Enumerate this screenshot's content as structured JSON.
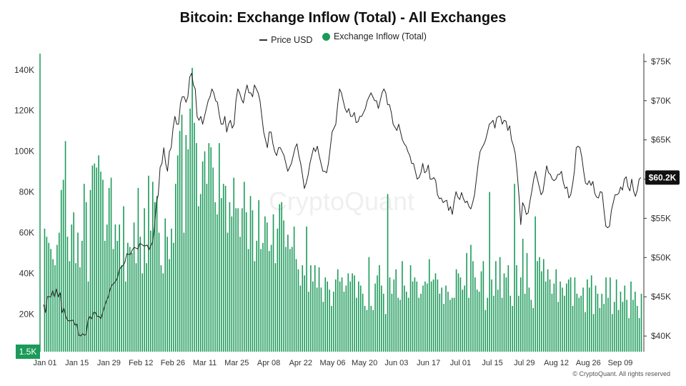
{
  "chart_data": {
    "type": "bar",
    "title": "Bitcoin: Exchange Inflow (Total) - All Exchanges",
    "legend": [
      "Price USD",
      "Exchange Inflow (Total)"
    ],
    "colors": {
      "bar": "#1c9a5a",
      "price": "#222222",
      "bar_light": "#cfe9da"
    },
    "left_axis": {
      "ticks": [
        "20K",
        "40K",
        "60K",
        "80K",
        "100K",
        "120K",
        "140K"
      ],
      "ylim": [
        1500,
        148000
      ],
      "highlight_label": "1.5K"
    },
    "right_axis": {
      "ticks": [
        "$40K",
        "$45K",
        "$50K",
        "$55K",
        "$60K",
        "$65K",
        "$70K",
        "$75K"
      ],
      "ylim": [
        38000,
        76000
      ],
      "highlight_label": "$60.2K"
    },
    "x_labels": [
      "Jan 01",
      "Jan 15",
      "Jan 29",
      "Feb 12",
      "Feb 26",
      "Mar 11",
      "Mar 25",
      "Apr 08",
      "Apr 22",
      "May 06",
      "May 20",
      "Jun 03",
      "Jun 17",
      "Jul 01",
      "Jul 15",
      "Jul 29",
      "Aug 12",
      "Aug 26",
      "Sep 09"
    ],
    "inflow": [
      62000,
      58000,
      55000,
      52000,
      47000,
      44000,
      54000,
      60000,
      81000,
      86000,
      105000,
      58000,
      46000,
      64000,
      70000,
      45000,
      60000,
      43000,
      56000,
      84000,
      75000,
      36000,
      81000,
      93000,
      94000,
      92000,
      98000,
      90000,
      86000,
      56000,
      64000,
      82000,
      87000,
      52000,
      64000,
      56000,
      64000,
      44000,
      73000,
      36000,
      55000,
      53000,
      50000,
      65000,
      45000,
      82000,
      58000,
      40000,
      72000,
      45000,
      88000,
      61000,
      85000,
      75000,
      78000,
      60000,
      44000,
      40000,
      67000,
      58000,
      47000,
      62000,
      55000,
      84000,
      98000,
      110000,
      118000,
      60000,
      108000,
      101000,
      121000,
      141000,
      114000,
      104000,
      73000,
      79000,
      95000,
      100000,
      84000,
      104000,
      102000,
      92000,
      75000,
      69000,
      104000,
      77000,
      84000,
      83000,
      60000,
      75000,
      68000,
      87000,
      72000,
      72000,
      58000,
      72000,
      85000,
      70000,
      52000,
      78000,
      71000,
      46000,
      56000,
      76000,
      52000,
      55000,
      68000,
      65000,
      51000,
      54000,
      69000,
      45000,
      62000,
      74000,
      75000,
      66000,
      53000,
      59000,
      52000,
      53000,
      63000,
      47000,
      42000,
      34000,
      44000,
      39000,
      63000,
      31000,
      44000,
      36000,
      44000,
      33000,
      43000,
      33000,
      26000,
      38000,
      36000,
      32000,
      24000,
      31000,
      37000,
      42000,
      36000,
      38000,
      31000,
      34000,
      40000,
      36000,
      40000,
      39000,
      28000,
      36000,
      34000,
      30000,
      24000,
      22000,
      48000,
      24000,
      22000,
      35000,
      39000,
      44000,
      34000,
      30000,
      20000,
      79000,
      38000,
      30000,
      37000,
      42000,
      28000,
      27000,
      46000,
      34000,
      31000,
      28000,
      44000,
      36000,
      38000,
      36000,
      28000,
      30000,
      34000,
      36000,
      35000,
      47000,
      36000,
      37000,
      40000,
      37000,
      30000,
      33000,
      25000,
      34000,
      31000,
      27000,
      28000,
      28000,
      42000,
      40000,
      38000,
      32000,
      34000,
      50000,
      28000,
      54000,
      46000,
      38000,
      32000,
      31000,
      41000,
      46000,
      22000,
      28000,
      80000,
      37000,
      29000,
      46000,
      32000,
      48000,
      28000,
      40000,
      38000,
      44000,
      29000,
      24000,
      84000,
      44000,
      29000,
      38000,
      57000,
      30000,
      50000,
      33000,
      27000,
      23000,
      68000,
      46000,
      48000,
      41000,
      47000,
      36000,
      42000,
      37000,
      30000,
      35000,
      42000,
      26000,
      36000,
      33000,
      29000,
      35000,
      37000,
      38000,
      24000,
      38000,
      30000,
      28000,
      29000,
      33000,
      21000,
      37000,
      33000,
      39000,
      20000,
      34000,
      30000,
      23000,
      30000,
      25000,
      38000,
      28000,
      38000,
      20000,
      26000,
      37000,
      22000,
      31000,
      26000,
      34000,
      27000,
      18000,
      36000,
      27000,
      31000,
      24000,
      18000,
      30000
    ],
    "price": [
      44000,
      43000,
      45000,
      45000,
      45000,
      45800,
      45000,
      46000,
      45000,
      45500,
      43000,
      43500,
      42500,
      42000,
      41900,
      42000,
      42000,
      41400,
      41500,
      40100,
      40000,
      40300,
      40100,
      40200,
      42000,
      42500,
      42200,
      43000,
      43000,
      42500,
      42500,
      42200,
      43000,
      43800,
      44500,
      45000,
      46000,
      46500,
      46700,
      47000,
      47500,
      48500,
      48800,
      49000,
      49400,
      50500,
      50400,
      50400,
      51000,
      51300,
      51200,
      51100,
      51800,
      51700,
      51500,
      51500,
      51600,
      51000,
      51500,
      52000,
      54000,
      57000,
      58000,
      61500,
      62000,
      64000,
      62000,
      61000,
      63500,
      64000,
      66500,
      68000,
      67000,
      67000,
      69700,
      70500,
      70500,
      69800,
      70500,
      73000,
      73500,
      72000,
      71500,
      68000,
      67500,
      68000,
      67000,
      68000,
      69000,
      70000,
      70500,
      71500,
      71000,
      70000,
      69800,
      68200,
      67000,
      67000,
      68000,
      66000,
      67000,
      67500,
      66500,
      67000,
      70000,
      71500,
      71000,
      70200,
      69700,
      71000,
      72000,
      71000,
      71000,
      70500,
      72000,
      71500,
      71000,
      70000,
      68000,
      66000,
      65000,
      64000,
      66000,
      66000,
      64500,
      63500,
      63000,
      64000,
      64000,
      63500,
      63000,
      62000,
      61000,
      61500,
      62000,
      63000,
      64000,
      64500,
      63000,
      62000,
      60500,
      58800,
      59500,
      60500,
      62000,
      63000,
      64000,
      63500,
      64200,
      63000,
      62000,
      61000,
      61000,
      60800,
      62000,
      64000,
      66000,
      66500,
      67000,
      69500,
      71500,
      71000,
      70000,
      69000,
      68500,
      69000,
      68000,
      68000,
      68500,
      67200,
      67300,
      68000,
      68000,
      68500,
      69000,
      70000,
      70500,
      71000,
      70500,
      70000,
      70000,
      69000,
      70000,
      71000,
      71500,
      71000,
      69500,
      69500,
      68500,
      67000,
      66600,
      66200,
      67000,
      66000,
      65000,
      64500,
      64200,
      63500,
      63000,
      62000,
      62000,
      61000,
      60000,
      60200,
      60800,
      62000,
      60800,
      61000,
      61800,
      60000,
      60000,
      60200,
      59800,
      58000,
      57500,
      57600,
      57000,
      57200,
      57300,
      56000,
      56500,
      55500,
      57200,
      58400,
      57700,
      57400,
      58300,
      57500,
      57000,
      57200,
      56500,
      56200,
      57000,
      58000,
      60000,
      62000,
      63500,
      64000,
      64400,
      65000,
      66000,
      67000,
      67200,
      67500,
      66500,
      67800,
      68000,
      68000,
      67000,
      67500,
      67400,
      66200,
      66800,
      65000,
      64300,
      63300,
      61000,
      58000,
      54200,
      57000,
      56500,
      55500,
      55700,
      57200,
      58500,
      60000,
      61000,
      60000,
      59000,
      58000,
      58400,
      60000,
      61700,
      60800,
      60600,
      60000,
      59800,
      60000,
      60600,
      60600,
      61000,
      59600,
      58800,
      59000,
      57600,
      58000,
      59300,
      61000,
      64000,
      64200,
      64000,
      62800,
      61000,
      59500,
      59300,
      59800,
      59200,
      59700,
      58200,
      57700,
      57600,
      58400,
      58300,
      56000,
      54000,
      53800,
      54000,
      56000,
      57000,
      58000,
      58000,
      58200,
      59000,
      58600,
      60000,
      60300,
      59000,
      58500,
      60000,
      58500,
      57800,
      58600,
      60000,
      60200
    ]
  },
  "watermark": "CryptoQuant",
  "credit": "© CryptoQuant. All rights reserved"
}
